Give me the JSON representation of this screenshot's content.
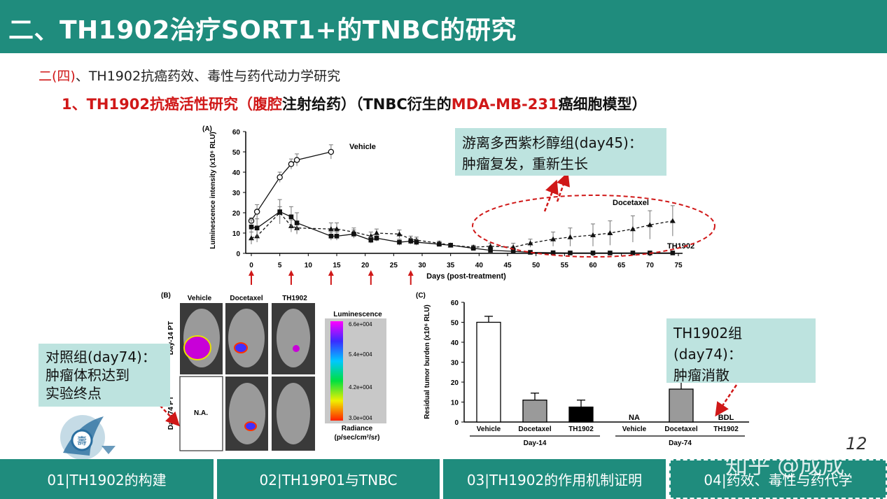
{
  "header": {
    "title": "二、TH1902治疗SORT1+的TNBC的研究"
  },
  "section": {
    "prefix": "二(四)",
    "text": "、TH1902抗癌药效、毒性与药代动力学研究"
  },
  "subsection": {
    "part1": "1、TH1902抗癌活性研究（腹腔",
    "part2": "注射给药）（TNBC衍生的",
    "part3": "MDA-MB-231",
    "part4": "癌细胞模型）"
  },
  "callouts": {
    "docetaxel": [
      "游离多西紫杉醇组(day45)：",
      "肿瘤复发，重新生长"
    ],
    "control": [
      "对照组(day74)：",
      "肿瘤体积达到",
      "实验终点"
    ],
    "th1902": [
      "TH1902组(day74)：",
      "肿瘤消散"
    ]
  },
  "panelA": {
    "label": "(A)",
    "ylabel": "Luminescence intensity (x10⁶ RLU)",
    "xlabel": "Days (post-treatment)",
    "series_labels": [
      "Vehicle",
      "Docetaxel",
      "TH1902"
    ]
  },
  "panelB": {
    "label": "(B)",
    "columns": [
      "Vehicle",
      "Docetaxel",
      "TH1902"
    ],
    "rows": [
      "Day-14 PT",
      "Day-74 PT"
    ],
    "na": "N.A.",
    "scale_title": "Luminescence",
    "scale_ticks": [
      "6.6e+004",
      "5.4e+004",
      "4.2e+004",
      "3.0e+004"
    ],
    "radiance": "Radiance",
    "radiance_unit": "(p/sec/cm²/sr)"
  },
  "tabs": [
    "01|TH1902的构建",
    "02|TH19P01与TNBC",
    "03|TH1902的作用机制证明",
    "04|药效、毒性与药代学"
  ],
  "page_number": "12",
  "watermark": "知乎 @成成",
  "colors": {
    "header": "#1f8c7d",
    "callout": "#bde3df",
    "accent_red": "#d01818"
  },
  "chart_data": [
    {
      "type": "line",
      "panel": "A",
      "xlabel": "Days (post-treatment)",
      "ylabel": "Luminescence intensity (x10⁶ RLU)",
      "xlim": [
        0,
        75
      ],
      "ylim": [
        0,
        60
      ],
      "xticks": [
        0,
        5,
        10,
        15,
        20,
        25,
        30,
        35,
        40,
        45,
        50,
        55,
        60,
        65,
        70,
        75
      ],
      "yticks": [
        0,
        10,
        20,
        30,
        40,
        50,
        60
      ],
      "treatment_days": [
        0,
        7,
        14,
        21,
        28
      ],
      "series": [
        {
          "name": "Vehicle",
          "marker": "open-circle",
          "line": "solid",
          "x": [
            0,
            1,
            5,
            7,
            8,
            14
          ],
          "y": [
            16,
            20.5,
            37.5,
            44,
            46,
            50
          ],
          "err": [
            1.5,
            3.5,
            2.5,
            2.5,
            3,
            3.5
          ]
        },
        {
          "name": "Docetaxel",
          "marker": "triangle",
          "line": "dashed",
          "x": [
            0,
            1,
            5,
            7,
            8,
            14,
            15,
            18,
            21,
            22,
            26,
            28,
            29,
            33,
            35,
            39,
            42,
            46,
            49,
            53,
            56,
            60,
            63,
            67,
            70,
            74
          ],
          "y": [
            7.5,
            8.5,
            20,
            13.5,
            12.5,
            12,
            12,
            10.5,
            8.5,
            10,
            9.5,
            7,
            6.5,
            5,
            4,
            3,
            3.5,
            3,
            5,
            7,
            8,
            9,
            10,
            12,
            14,
            16
          ],
          "err": [
            3,
            3,
            3,
            3,
            3,
            3,
            3,
            2,
            2,
            2,
            2,
            1.5,
            1.5,
            1,
            1,
            1,
            1.5,
            2,
            2,
            3.5,
            4.5,
            5.5,
            6,
            6.5,
            7,
            7.5
          ]
        },
        {
          "name": "TH1902",
          "marker": "square",
          "line": "solid",
          "x": [
            0,
            1,
            5,
            7,
            8,
            14,
            15,
            18,
            21,
            22,
            26,
            28,
            29,
            33,
            35,
            39,
            42,
            46,
            49,
            53,
            56,
            60,
            63,
            67,
            70,
            74
          ],
          "y": [
            13,
            12.5,
            20.5,
            18,
            15,
            8.5,
            8.5,
            9.5,
            6.5,
            7.5,
            5.5,
            6,
            5.5,
            4.5,
            4,
            2.5,
            1.5,
            1,
            0.5,
            0.3,
            0.2,
            0.2,
            0.2,
            0.2,
            0.2,
            0.2
          ],
          "err": [
            3.5,
            4.5,
            6,
            5,
            5,
            2,
            2,
            2,
            1.5,
            1.5,
            1.5,
            1.5,
            1.5,
            1,
            1,
            1,
            0.5,
            0.5,
            0.3,
            0.2,
            0.2,
            0.2,
            0.2,
            0.2,
            0.2,
            0.2
          ]
        }
      ]
    },
    {
      "type": "bar",
      "panel": "C",
      "panel_label": "(C)",
      "ylabel": "Residual tumor burden (x10⁶ RLU)",
      "ylim": [
        0,
        60
      ],
      "yticks": [
        0,
        10,
        20,
        30,
        40,
        50,
        60
      ],
      "groups": [
        {
          "name": "Day-14",
          "bars": [
            {
              "label": "Vehicle",
              "value": 50,
              "err": 3,
              "fill": "#ffffff"
            },
            {
              "label": "Docetaxel",
              "value": 11,
              "err": 3.5,
              "fill": "#9a9a9a"
            },
            {
              "label": "TH1902",
              "value": 7.5,
              "err": 3.5,
              "fill": "#000000"
            }
          ]
        },
        {
          "name": "Day-74",
          "bars": [
            {
              "label": "Vehicle",
              "value": null,
              "text": "NA"
            },
            {
              "label": "Docetaxel",
              "value": 16.5,
              "err": 6,
              "fill": "#9a9a9a"
            },
            {
              "label": "TH1902",
              "value": null,
              "text": "BDL"
            }
          ]
        }
      ]
    }
  ]
}
